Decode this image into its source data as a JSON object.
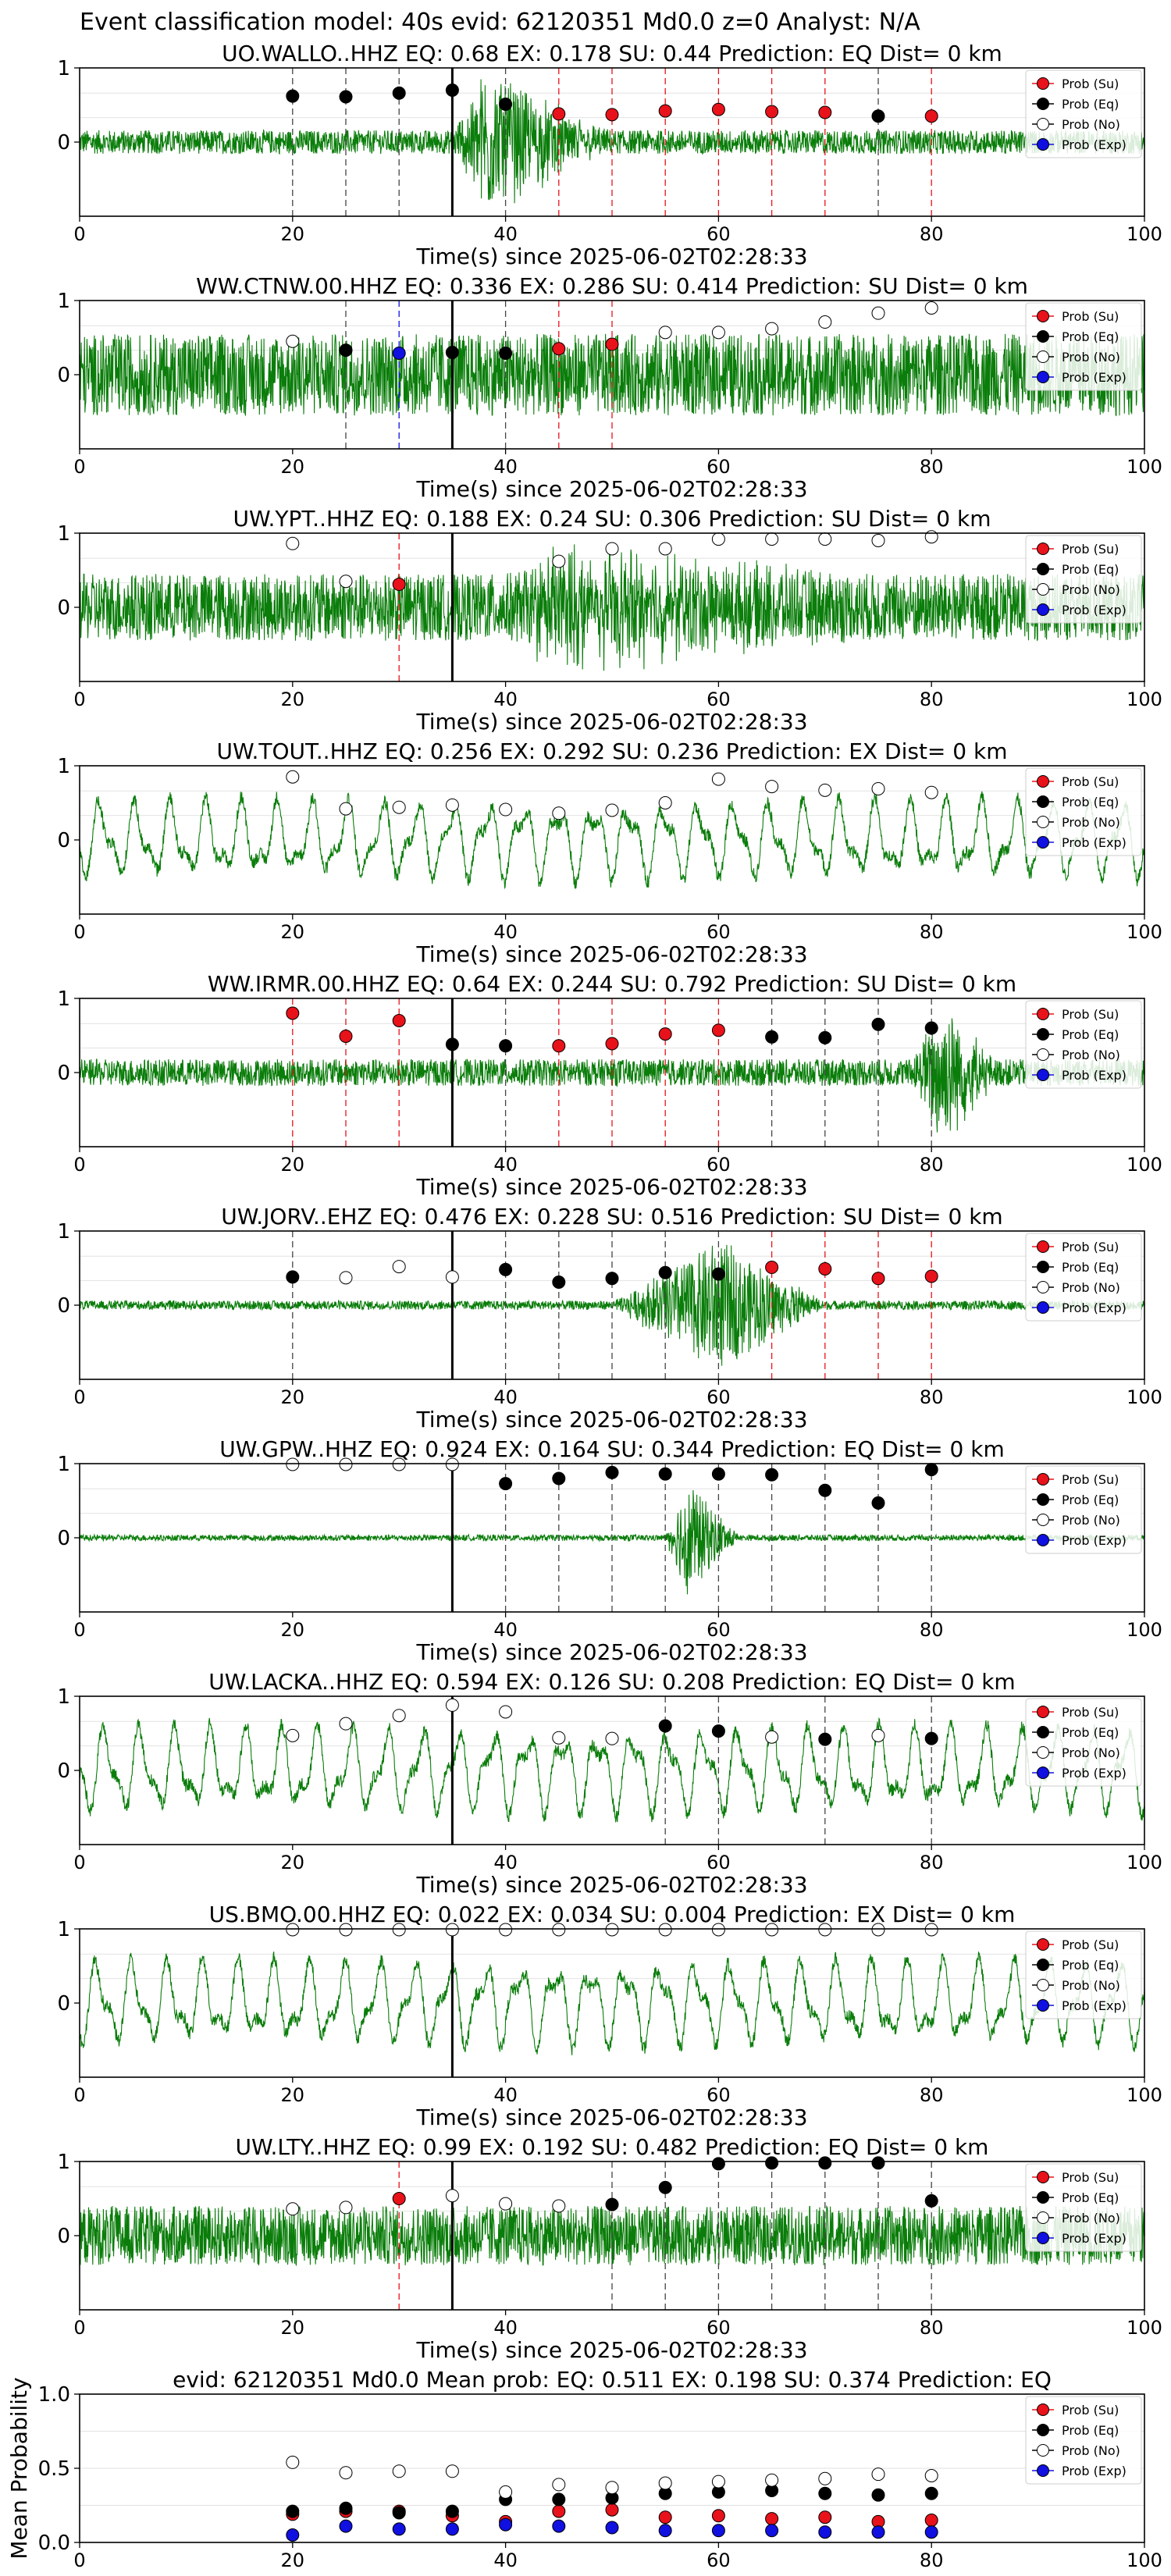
{
  "suptitle": "Event classification model: 40s evid: 62120351 Md0.0 z=0 Analyst: N/A",
  "xlabel": "Time(s) since 2025-06-02T02:28:33",
  "legend": [
    "Prob (Su)",
    "Prob (Eq)",
    "Prob (No)",
    "Prob (Exp)"
  ],
  "colors": {
    "su": "#e8121a",
    "eq": "#000000",
    "no": "#ffffff",
    "exp": "#1010e0",
    "trace": "#0a7d0a"
  },
  "chart_data": [
    {
      "type": "line",
      "title": "UO.WALLO..HHZ   EQ: 0.68  EX: 0.178  SU: 0.44   Prediction: EQ    Dist= 0 km",
      "xlim": [
        0,
        100
      ],
      "ylim": [
        -1,
        1
      ],
      "xticks": [
        0,
        20,
        40,
        60,
        80,
        100
      ],
      "yticks": [
        0,
        1
      ],
      "pick": 35,
      "trace": {
        "style": "burst",
        "amp": 0.16,
        "burst_start": 35,
        "burst_peak": 38,
        "burst_end": 50,
        "burst_amp": 0.9
      },
      "markers": [
        {
          "x": 20,
          "y": 0.62,
          "cls": "eq"
        },
        {
          "x": 25,
          "y": 0.61,
          "cls": "eq"
        },
        {
          "x": 30,
          "y": 0.66,
          "cls": "eq"
        },
        {
          "x": 35,
          "y": 0.7,
          "cls": "eq"
        },
        {
          "x": 40,
          "y": 0.51,
          "cls": "eq"
        },
        {
          "x": 45,
          "y": 0.38,
          "cls": "su"
        },
        {
          "x": 50,
          "y": 0.37,
          "cls": "su"
        },
        {
          "x": 55,
          "y": 0.42,
          "cls": "su"
        },
        {
          "x": 60,
          "y": 0.44,
          "cls": "su"
        },
        {
          "x": 65,
          "y": 0.41,
          "cls": "su"
        },
        {
          "x": 70,
          "y": 0.4,
          "cls": "su"
        },
        {
          "x": 75,
          "y": 0.35,
          "cls": "eq"
        },
        {
          "x": 80,
          "y": 0.35,
          "cls": "su"
        }
      ]
    },
    {
      "type": "line",
      "title": "WW.CTNW.00.HHZ   EQ: 0.336  EX: 0.286  SU: 0.414   Prediction: SU    Dist= 0 km",
      "xlim": [
        0,
        100
      ],
      "ylim": [
        -1,
        1
      ],
      "xticks": [
        0,
        20,
        40,
        60,
        80,
        100
      ],
      "yticks": [
        0,
        1
      ],
      "pick": 35,
      "trace": {
        "style": "noisy",
        "amp": 0.55,
        "burst_start": 0,
        "burst_peak": 0,
        "burst_end": 0,
        "burst_amp": 0
      },
      "markers": [
        {
          "x": 20,
          "y": 0.45,
          "cls": "no"
        },
        {
          "x": 25,
          "y": 0.33,
          "cls": "eq"
        },
        {
          "x": 30,
          "y": 0.29,
          "cls": "exp"
        },
        {
          "x": 35,
          "y": 0.3,
          "cls": "eq"
        },
        {
          "x": 40,
          "y": 0.29,
          "cls": "eq"
        },
        {
          "x": 45,
          "y": 0.35,
          "cls": "su"
        },
        {
          "x": 50,
          "y": 0.41,
          "cls": "su"
        },
        {
          "x": 55,
          "y": 0.57,
          "cls": "no"
        },
        {
          "x": 60,
          "y": 0.57,
          "cls": "no"
        },
        {
          "x": 65,
          "y": 0.62,
          "cls": "no"
        },
        {
          "x": 70,
          "y": 0.71,
          "cls": "no"
        },
        {
          "x": 75,
          "y": 0.83,
          "cls": "no"
        },
        {
          "x": 80,
          "y": 0.9,
          "cls": "no"
        }
      ]
    },
    {
      "type": "line",
      "title": "UW.YPT..HHZ   EQ: 0.188  EX: 0.24  SU: 0.306   Prediction: SU    Dist= 0 km",
      "xlim": [
        0,
        100
      ],
      "ylim": [
        -1,
        1
      ],
      "xticks": [
        0,
        20,
        40,
        60,
        80,
        100
      ],
      "yticks": [
        0,
        1
      ],
      "pick": 35,
      "trace": {
        "style": "noisy",
        "amp": 0.45,
        "burst_start": 40,
        "burst_peak": 45,
        "burst_end": 75,
        "burst_amp": 0.55
      },
      "markers": [
        {
          "x": 20,
          "y": 0.86,
          "cls": "no"
        },
        {
          "x": 25,
          "y": 0.35,
          "cls": "no"
        },
        {
          "x": 30,
          "y": 0.31,
          "cls": "su"
        },
        {
          "x": 45,
          "y": 0.62,
          "cls": "no"
        },
        {
          "x": 50,
          "y": 0.79,
          "cls": "no"
        },
        {
          "x": 55,
          "y": 0.79,
          "cls": "no"
        },
        {
          "x": 60,
          "y": 0.92,
          "cls": "no"
        },
        {
          "x": 65,
          "y": 0.92,
          "cls": "no"
        },
        {
          "x": 70,
          "y": 0.92,
          "cls": "no"
        },
        {
          "x": 75,
          "y": 0.9,
          "cls": "no"
        },
        {
          "x": 80,
          "y": 0.95,
          "cls": "no"
        }
      ]
    },
    {
      "type": "line",
      "title": "UW.TOUT..HHZ   EQ: 0.256  EX: 0.292  SU: 0.236   Prediction: EX    Dist= 0 km",
      "xlim": [
        0,
        100
      ],
      "ylim": [
        -1,
        1
      ],
      "xticks": [
        0,
        20,
        40,
        60,
        80,
        100
      ],
      "yticks": [
        0,
        1
      ],
      "pick": null,
      "trace": {
        "style": "wavy",
        "amp": 0.55,
        "burst_start": 0,
        "burst_peak": 0,
        "burst_end": 0,
        "burst_amp": 0
      },
      "markers": [
        {
          "x": 20,
          "y": 0.85,
          "cls": "no"
        },
        {
          "x": 25,
          "y": 0.42,
          "cls": "no"
        },
        {
          "x": 30,
          "y": 0.44,
          "cls": "no"
        },
        {
          "x": 35,
          "y": 0.47,
          "cls": "no"
        },
        {
          "x": 40,
          "y": 0.41,
          "cls": "no"
        },
        {
          "x": 45,
          "y": 0.36,
          "cls": "no"
        },
        {
          "x": 50,
          "y": 0.4,
          "cls": "no"
        },
        {
          "x": 55,
          "y": 0.5,
          "cls": "no"
        },
        {
          "x": 60,
          "y": 0.82,
          "cls": "no"
        },
        {
          "x": 65,
          "y": 0.72,
          "cls": "no"
        },
        {
          "x": 70,
          "y": 0.67,
          "cls": "no"
        },
        {
          "x": 75,
          "y": 0.69,
          "cls": "no"
        },
        {
          "x": 80,
          "y": 0.64,
          "cls": "no"
        }
      ]
    },
    {
      "type": "line",
      "title": "WW.IRMR.00.HHZ   EQ: 0.64  EX: 0.244  SU: 0.792   Prediction: SU    Dist= 0 km",
      "xlim": [
        0,
        100
      ],
      "ylim": [
        -1,
        1
      ],
      "xticks": [
        0,
        20,
        40,
        60,
        80,
        100
      ],
      "yticks": [
        0,
        1
      ],
      "pick": 35,
      "trace": {
        "style": "burst",
        "amp": 0.18,
        "burst_start": 78,
        "burst_peak": 81,
        "burst_end": 86,
        "burst_amp": 0.95
      },
      "markers": [
        {
          "x": 20,
          "y": 0.8,
          "cls": "su"
        },
        {
          "x": 25,
          "y": 0.49,
          "cls": "su"
        },
        {
          "x": 30,
          "y": 0.7,
          "cls": "su"
        },
        {
          "x": 35,
          "y": 0.38,
          "cls": "eq"
        },
        {
          "x": 40,
          "y": 0.36,
          "cls": "eq"
        },
        {
          "x": 45,
          "y": 0.36,
          "cls": "su"
        },
        {
          "x": 50,
          "y": 0.39,
          "cls": "su"
        },
        {
          "x": 55,
          "y": 0.52,
          "cls": "su"
        },
        {
          "x": 60,
          "y": 0.57,
          "cls": "su"
        },
        {
          "x": 65,
          "y": 0.48,
          "cls": "eq"
        },
        {
          "x": 70,
          "y": 0.47,
          "cls": "eq"
        },
        {
          "x": 75,
          "y": 0.65,
          "cls": "eq"
        },
        {
          "x": 80,
          "y": 0.6,
          "cls": "eq"
        }
      ]
    },
    {
      "type": "line",
      "title": "UW.JORV..EHZ   EQ: 0.476  EX: 0.228  SU: 0.516   Prediction: SU    Dist= 0 km",
      "xlim": [
        0,
        100
      ],
      "ylim": [
        -1,
        1
      ],
      "xticks": [
        0,
        20,
        40,
        60,
        80,
        100
      ],
      "yticks": [
        0,
        1
      ],
      "pick": 35,
      "trace": {
        "style": "burst",
        "amp": 0.06,
        "burst_start": 50,
        "burst_peak": 60,
        "burst_end": 70,
        "burst_amp": 0.85
      },
      "markers": [
        {
          "x": 20,
          "y": 0.38,
          "cls": "eq"
        },
        {
          "x": 25,
          "y": 0.37,
          "cls": "no"
        },
        {
          "x": 30,
          "y": 0.52,
          "cls": "no"
        },
        {
          "x": 35,
          "y": 0.38,
          "cls": "no"
        },
        {
          "x": 40,
          "y": 0.48,
          "cls": "eq"
        },
        {
          "x": 45,
          "y": 0.31,
          "cls": "eq"
        },
        {
          "x": 50,
          "y": 0.36,
          "cls": "eq"
        },
        {
          "x": 55,
          "y": 0.44,
          "cls": "eq"
        },
        {
          "x": 60,
          "y": 0.42,
          "cls": "eq"
        },
        {
          "x": 65,
          "y": 0.51,
          "cls": "su"
        },
        {
          "x": 70,
          "y": 0.49,
          "cls": "su"
        },
        {
          "x": 75,
          "y": 0.36,
          "cls": "su"
        },
        {
          "x": 80,
          "y": 0.39,
          "cls": "su"
        }
      ]
    },
    {
      "type": "line",
      "title": "UW.GPW..HHZ   EQ: 0.924  EX: 0.164  SU: 0.344   Prediction: EQ    Dist= 0 km",
      "xlim": [
        0,
        100
      ],
      "ylim": [
        -1,
        1
      ],
      "xticks": [
        0,
        20,
        40,
        60,
        80,
        100
      ],
      "yticks": [
        0,
        1
      ],
      "pick": 35,
      "trace": {
        "style": "burst",
        "amp": 0.04,
        "burst_start": 55,
        "burst_peak": 57,
        "burst_end": 62,
        "burst_amp": 0.75
      },
      "markers": [
        {
          "x": 20,
          "y": 0.99,
          "cls": "no"
        },
        {
          "x": 25,
          "y": 0.99,
          "cls": "no"
        },
        {
          "x": 30,
          "y": 0.99,
          "cls": "no"
        },
        {
          "x": 35,
          "y": 0.99,
          "cls": "no"
        },
        {
          "x": 40,
          "y": 0.73,
          "cls": "eq"
        },
        {
          "x": 45,
          "y": 0.8,
          "cls": "eq"
        },
        {
          "x": 50,
          "y": 0.88,
          "cls": "eq"
        },
        {
          "x": 55,
          "y": 0.86,
          "cls": "eq"
        },
        {
          "x": 60,
          "y": 0.86,
          "cls": "eq"
        },
        {
          "x": 65,
          "y": 0.85,
          "cls": "eq"
        },
        {
          "x": 70,
          "y": 0.64,
          "cls": "eq"
        },
        {
          "x": 75,
          "y": 0.47,
          "cls": "eq"
        },
        {
          "x": 80,
          "y": 0.92,
          "cls": "eq"
        }
      ]
    },
    {
      "type": "line",
      "title": "UW.LACKA..HHZ   EQ: 0.594  EX: 0.126  SU: 0.208   Prediction: EQ    Dist= 0 km",
      "xlim": [
        0,
        100
      ],
      "ylim": [
        -1,
        1
      ],
      "xticks": [
        0,
        20,
        40,
        60,
        80,
        100
      ],
      "yticks": [
        0,
        1
      ],
      "pick": 35,
      "trace": {
        "style": "wavy",
        "amp": 0.6,
        "burst_start": 0,
        "burst_peak": 0,
        "burst_end": 0,
        "burst_amp": 0
      },
      "markers": [
        {
          "x": 20,
          "y": 0.47,
          "cls": "no"
        },
        {
          "x": 25,
          "y": 0.63,
          "cls": "no"
        },
        {
          "x": 30,
          "y": 0.74,
          "cls": "no"
        },
        {
          "x": 35,
          "y": 0.88,
          "cls": "no"
        },
        {
          "x": 40,
          "y": 0.79,
          "cls": "no"
        },
        {
          "x": 45,
          "y": 0.44,
          "cls": "no"
        },
        {
          "x": 50,
          "y": 0.43,
          "cls": "no"
        },
        {
          "x": 55,
          "y": 0.6,
          "cls": "eq"
        },
        {
          "x": 60,
          "y": 0.53,
          "cls": "eq"
        },
        {
          "x": 65,
          "y": 0.45,
          "cls": "no"
        },
        {
          "x": 70,
          "y": 0.42,
          "cls": "eq"
        },
        {
          "x": 75,
          "y": 0.47,
          "cls": "no"
        },
        {
          "x": 80,
          "y": 0.43,
          "cls": "eq"
        }
      ]
    },
    {
      "type": "line",
      "title": "US.BMO.00.HHZ   EQ: 0.022  EX: 0.034  SU: 0.004   Prediction: EX    Dist= 0 km",
      "xlim": [
        0,
        100
      ],
      "ylim": [
        -1,
        1
      ],
      "xticks": [
        0,
        20,
        40,
        60,
        80,
        100
      ],
      "yticks": [
        0,
        1
      ],
      "pick": 35,
      "trace": {
        "style": "wavy",
        "amp": 0.6,
        "burst_start": 0,
        "burst_peak": 0,
        "burst_end": 0,
        "burst_amp": 0
      },
      "markers": [
        {
          "x": 20,
          "y": 0.99,
          "cls": "no"
        },
        {
          "x": 25,
          "y": 0.99,
          "cls": "no"
        },
        {
          "x": 30,
          "y": 0.99,
          "cls": "no"
        },
        {
          "x": 35,
          "y": 0.99,
          "cls": "no"
        },
        {
          "x": 40,
          "y": 0.99,
          "cls": "no"
        },
        {
          "x": 45,
          "y": 0.99,
          "cls": "no"
        },
        {
          "x": 50,
          "y": 0.99,
          "cls": "no"
        },
        {
          "x": 55,
          "y": 0.99,
          "cls": "no"
        },
        {
          "x": 60,
          "y": 0.99,
          "cls": "no"
        },
        {
          "x": 65,
          "y": 0.99,
          "cls": "no"
        },
        {
          "x": 70,
          "y": 0.99,
          "cls": "no"
        },
        {
          "x": 75,
          "y": 0.99,
          "cls": "no"
        },
        {
          "x": 80,
          "y": 0.99,
          "cls": "no"
        }
      ]
    },
    {
      "type": "line",
      "title": "UW.LTY..HHZ   EQ: 0.99  EX: 0.192  SU: 0.482   Prediction: EQ    Dist= 0 km",
      "xlim": [
        0,
        100
      ],
      "ylim": [
        -1,
        1
      ],
      "xticks": [
        0,
        20,
        40,
        60,
        80,
        100
      ],
      "yticks": [
        0,
        1
      ],
      "pick": 35,
      "trace": {
        "style": "noisy",
        "amp": 0.4,
        "burst_start": 0,
        "burst_peak": 0,
        "burst_end": 0,
        "burst_amp": 0
      },
      "markers": [
        {
          "x": 20,
          "y": 0.36,
          "cls": "no"
        },
        {
          "x": 25,
          "y": 0.38,
          "cls": "no"
        },
        {
          "x": 30,
          "y": 0.5,
          "cls": "su"
        },
        {
          "x": 35,
          "y": 0.54,
          "cls": "no"
        },
        {
          "x": 40,
          "y": 0.43,
          "cls": "no"
        },
        {
          "x": 45,
          "y": 0.4,
          "cls": "no"
        },
        {
          "x": 50,
          "y": 0.42,
          "cls": "eq"
        },
        {
          "x": 55,
          "y": 0.65,
          "cls": "eq"
        },
        {
          "x": 60,
          "y": 0.97,
          "cls": "eq"
        },
        {
          "x": 65,
          "y": 0.98,
          "cls": "eq"
        },
        {
          "x": 70,
          "y": 0.98,
          "cls": "eq"
        },
        {
          "x": 75,
          "y": 0.98,
          "cls": "eq"
        },
        {
          "x": 80,
          "y": 0.47,
          "cls": "eq"
        }
      ]
    },
    {
      "type": "scatter",
      "title": "evid: 62120351  Md0.0   Mean prob:   EQ: 0.511  EX: 0.198  SU: 0.374   Prediction: EQ",
      "ylabel": "Mean Probability",
      "xlim": [
        0,
        100
      ],
      "ylim": [
        0,
        1
      ],
      "xticks": [
        0,
        20,
        40,
        60,
        80,
        100
      ],
      "yticks": [
        0.0,
        0.5,
        1.0
      ],
      "x": [
        20,
        25,
        30,
        35,
        40,
        45,
        50,
        55,
        60,
        65,
        70,
        75,
        80
      ],
      "series": [
        {
          "name": "Prob (Su)",
          "cls": "su",
          "values": [
            0.19,
            0.21,
            0.21,
            0.18,
            0.14,
            0.21,
            0.22,
            0.17,
            0.18,
            0.16,
            0.17,
            0.14,
            0.15
          ]
        },
        {
          "name": "Prob (Eq)",
          "cls": "eq",
          "values": [
            0.21,
            0.23,
            0.2,
            0.21,
            0.29,
            0.29,
            0.3,
            0.33,
            0.34,
            0.35,
            0.33,
            0.32,
            0.33
          ]
        },
        {
          "name": "Prob (No)",
          "cls": "no",
          "values": [
            0.54,
            0.47,
            0.48,
            0.48,
            0.34,
            0.39,
            0.37,
            0.4,
            0.41,
            0.42,
            0.43,
            0.46,
            0.45
          ]
        },
        {
          "name": "Prob (Exp)",
          "cls": "exp",
          "values": [
            0.05,
            0.11,
            0.09,
            0.09,
            0.12,
            0.11,
            0.1,
            0.08,
            0.08,
            0.08,
            0.07,
            0.07,
            0.07
          ]
        }
      ]
    }
  ]
}
